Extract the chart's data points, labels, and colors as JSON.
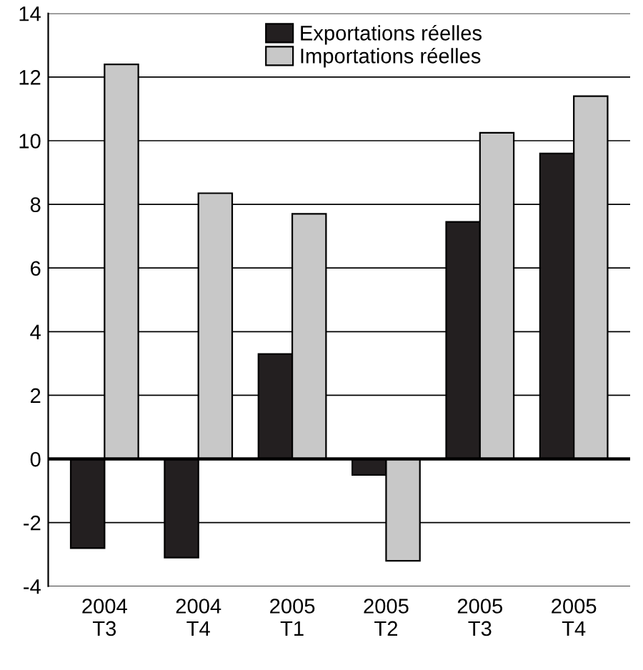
{
  "chart_data": {
    "type": "bar",
    "categories": [
      "2004\nT3",
      "2004\nT4",
      "2005\nT1",
      "2005\nT2",
      "2005\nT3",
      "2005\nT4"
    ],
    "series": [
      {
        "name": "Exportations réelles",
        "color": "#231f20",
        "values": [
          -2.8,
          -3.1,
          3.3,
          -0.5,
          7.45,
          9.6
        ]
      },
      {
        "name": "Importations réelles",
        "color": "#c8c8c8",
        "values": [
          12.4,
          8.35,
          7.7,
          -3.2,
          10.25,
          11.4
        ]
      }
    ],
    "ylim": [
      -4,
      14
    ],
    "yticks": [
      -4,
      -2,
      0,
      2,
      4,
      6,
      8,
      10,
      12,
      14
    ],
    "grid": "y",
    "legend": "top"
  }
}
